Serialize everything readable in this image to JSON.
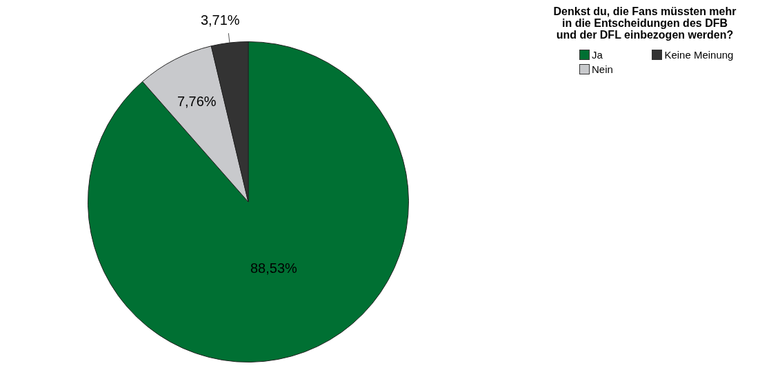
{
  "chart_data": {
    "type": "pie",
    "legend_title": "Denkst du, die Fans müssten mehr in die Entscheidungen des DFB und der DFL einbezogen werden?",
    "categories": [
      "Ja",
      "Nein",
      "Keine Meinung"
    ],
    "values": [
      88.53,
      7.76,
      3.71
    ],
    "colors": [
      "#007033",
      "#c8c9cc",
      "#333333"
    ],
    "value_labels": [
      "88,53%",
      "7,76%",
      "3,71%"
    ],
    "legend": "top right"
  }
}
